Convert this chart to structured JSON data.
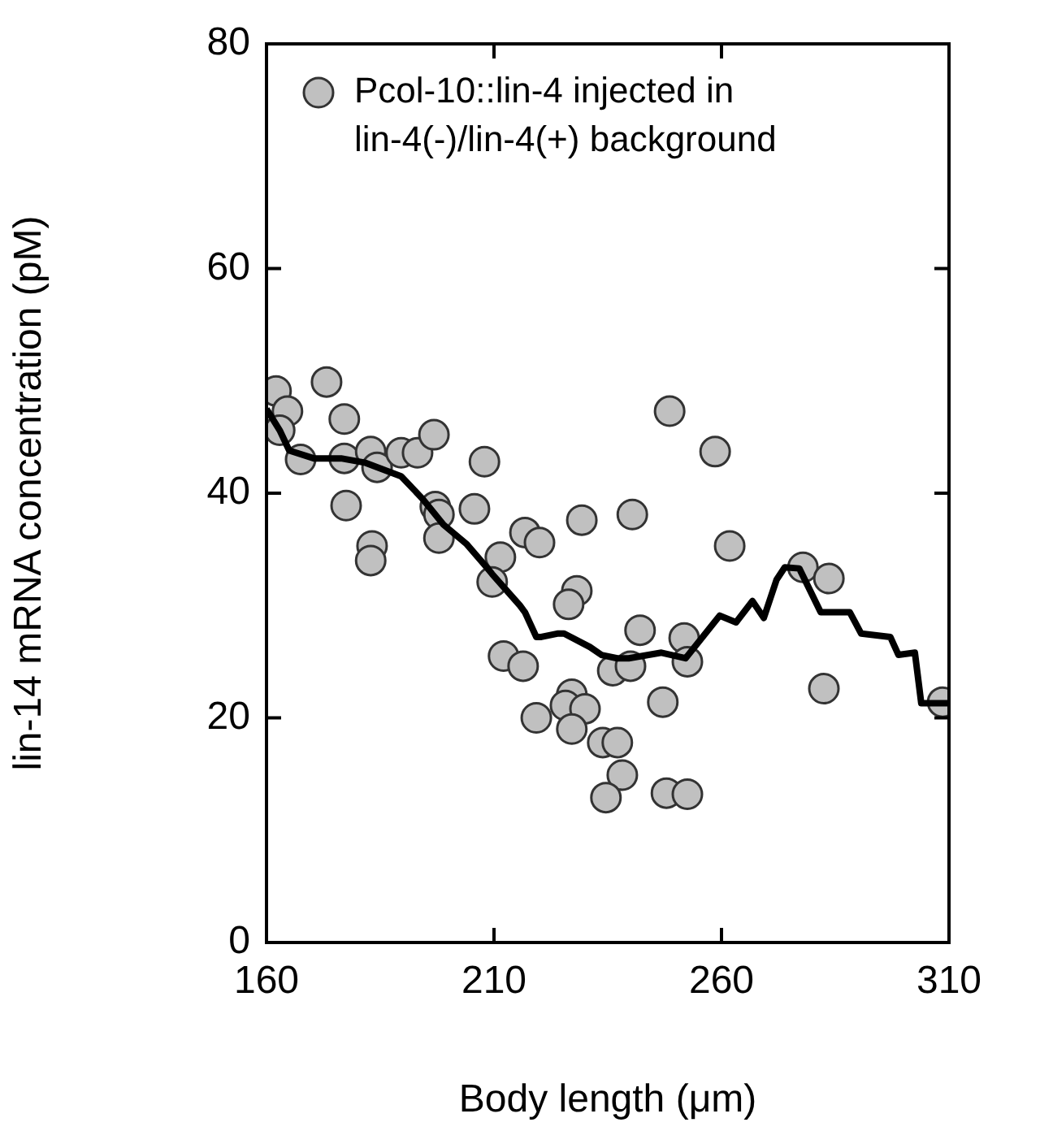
{
  "chart_data": {
    "type": "scatter",
    "xlabel": "Body length (μm)",
    "ylabel": "lin-14 mRNA concentration (pM)",
    "xlim": [
      160,
      310
    ],
    "xticks": [
      160,
      210,
      260,
      310
    ],
    "ylim": [
      0,
      80
    ],
    "yticks": [
      0,
      20,
      40,
      60,
      80
    ],
    "grid": false,
    "legend": "top left",
    "series": [
      {
        "name": "Pcol-10::lin-4 injected in lin-4(-)/lin-4(+) background",
        "marker": "circle",
        "color": "#c0c0c0",
        "x": [
          162.1,
          164.6,
          162.9,
          167.5,
          173.2,
          177.1,
          177.1,
          182.9,
          184.3,
          189.6,
          193.2,
          196.8,
          177.5,
          183.2,
          182.9,
          197.1,
          197.9,
          197.9,
          205.7,
          207.9,
          211.4,
          209.6,
          216.8,
          220,
          229.3,
          228.2,
          226.4,
          212.1,
          216.4,
          236.1,
          240.4,
          248.6,
          258.6,
          261.8,
          242.1,
          251.8,
          252.5,
          240,
          277.9,
          283.6,
          282.5,
          308.6,
          227.1,
          225.7,
          230,
          219.3,
          227.1,
          233.9,
          237.1,
          238.2,
          234.6,
          247.9,
          252.5,
          247.1
        ],
        "values": [
          49.1,
          47.3,
          45.6,
          43,
          49.9,
          46.6,
          43.1,
          43.7,
          42.3,
          43.6,
          43.6,
          45.2,
          38.9,
          35.3,
          34,
          38.8,
          38.1,
          36,
          38.6,
          42.8,
          34.3,
          32.1,
          36.5,
          35.6,
          37.6,
          31.3,
          30.1,
          25.5,
          24.6,
          24.2,
          38.1,
          47.3,
          43.7,
          35.3,
          27.8,
          27.1,
          25,
          24.6,
          33.4,
          32.4,
          22.6,
          21.4,
          22.1,
          21.1,
          20.8,
          20,
          19,
          17.8,
          17.8,
          14.9,
          12.9,
          13.3,
          13.2,
          21.4
        ]
      },
      {
        "type": "line",
        "color": "#000000",
        "marker": "none",
        "line_style": "solid",
        "x": [
          160,
          162.9,
          165,
          170.4,
          176.4,
          181.8,
          189.6,
          194.3,
          198.9,
          203.9,
          208.6,
          209.6,
          215.7,
          216.8,
          219.3,
          220.4,
          223.9,
          225.4,
          231.1,
          233.6,
          237.1,
          239.6,
          246.8,
          252.1,
          259.6,
          263.2,
          266.8,
          269.3,
          272.1,
          273.9,
          277.1,
          281.8,
          288.2,
          290.7,
          297.1,
          298.9,
          302.5,
          303.9,
          310
        ],
        "values": [
          47.5,
          45.6,
          43.8,
          43.1,
          43.1,
          42.7,
          41.5,
          39.5,
          37.2,
          35.5,
          33.3,
          32.8,
          30,
          29.4,
          27.2,
          27.2,
          27.5,
          27.5,
          26.3,
          25.6,
          25.3,
          25.3,
          25.8,
          25.3,
          29.1,
          28.5,
          30.4,
          28.9,
          32.3,
          33.4,
          33.3,
          29.4,
          29.4,
          27.5,
          27.2,
          25.6,
          25.8,
          21.3,
          21.3
        ]
      }
    ]
  }
}
